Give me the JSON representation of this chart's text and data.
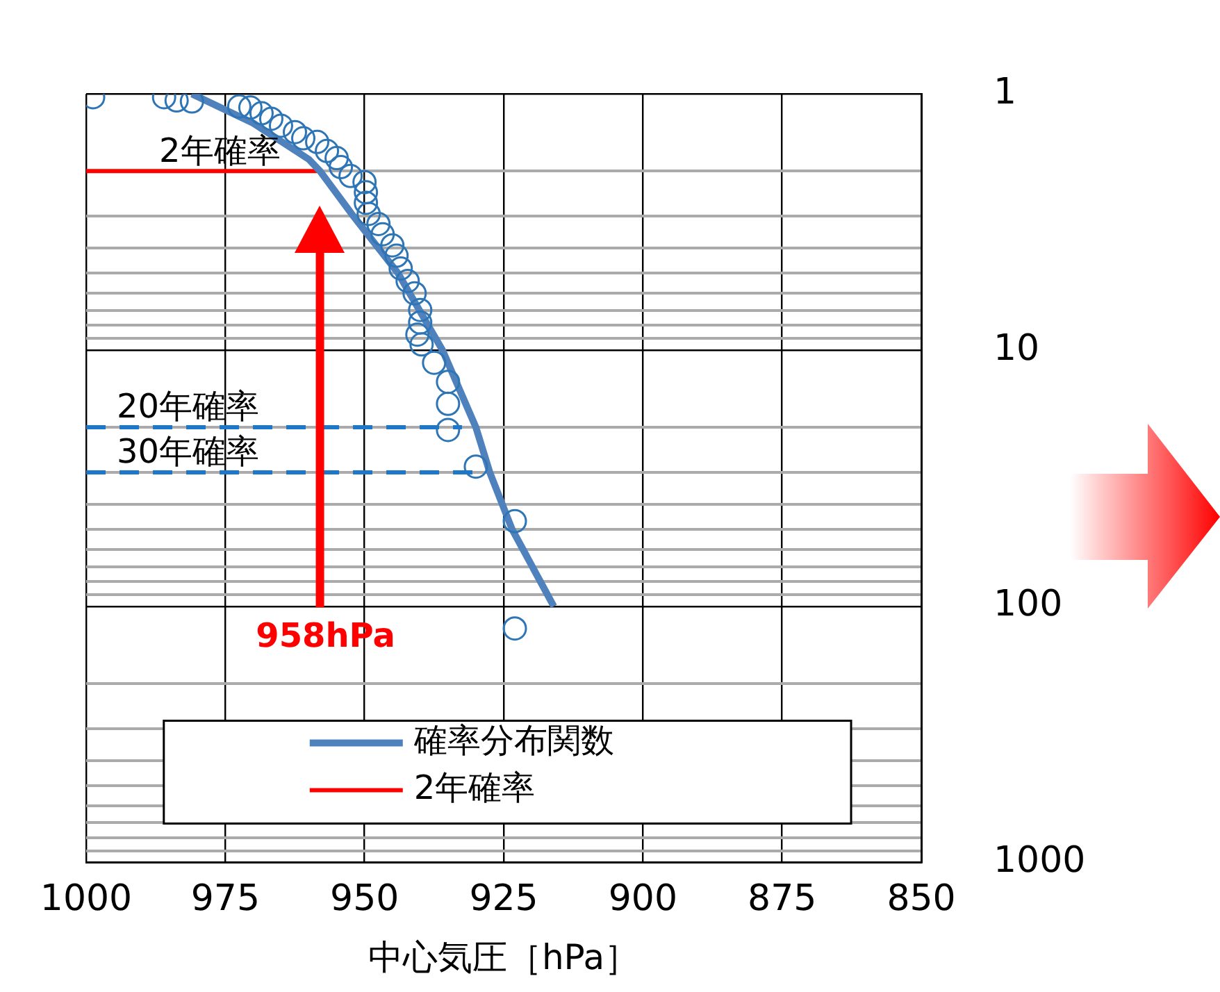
{
  "chart_data": {
    "type": "scatter",
    "xlabel": "中心気圧［hPa］",
    "xlim": [
      1000,
      850
    ],
    "xticks": [
      1000,
      975,
      950,
      925,
      900,
      875,
      850
    ],
    "ylim": [
      1000,
      1
    ],
    "yticks": [
      1,
      10,
      100,
      1000
    ],
    "log": "y",
    "grid": true,
    "legend": "bottom",
    "series": [
      {
        "type": "scatter",
        "color": "#2e75b6",
        "marker": "circle",
        "x": [
          998.75,
          986,
          983.75,
          981,
          972.5,
          970.5,
          968.5,
          966.75,
          965,
          962.5,
          961,
          958.5,
          956.75,
          955,
          954.25,
          952.5,
          950,
          949.75,
          949.75,
          949.25,
          947.5,
          946.75,
          945,
          944.25,
          943.5,
          942.25,
          941,
          940,
          940,
          940.5,
          939.75,
          937.5,
          935,
          935,
          935,
          930,
          923,
          923
        ],
        "values": [
          1.03,
          1.03,
          1.06,
          1.07,
          1.12,
          1.13,
          1.19,
          1.25,
          1.33,
          1.41,
          1.49,
          1.54,
          1.67,
          1.78,
          1.93,
          2.09,
          2.21,
          2.42,
          2.66,
          2.94,
          3.22,
          3.53,
          3.9,
          4.28,
          4.8,
          5.37,
          6,
          6.97,
          7.8,
          8.7,
          9.5,
          11.2,
          13.3,
          16.2,
          20.5,
          28.5,
          46.5,
          122
        ]
      },
      {
        "type": "line",
        "name": "確率分布関数",
        "color": "#4f81bd",
        "marker": "none",
        "x": [
          981,
          970,
          960,
          958,
          952,
          944,
          936,
          930,
          927.5,
          923.5,
          916
        ],
        "values": [
          1,
          1.3,
          1.8,
          2,
          3,
          5,
          10,
          20,
          30,
          50,
          100
        ]
      },
      {
        "type": "line",
        "name": "2年確率",
        "color": "#ff0000",
        "marker": "none",
        "x": [
          1000,
          958
        ],
        "values": [
          2,
          2
        ]
      }
    ],
    "ref_lines": [
      {
        "axis": "y",
        "value": 20,
        "label": "20年確率",
        "color": "#1f77c8",
        "line_style": "dashed"
      },
      {
        "axis": "y",
        "value": 30,
        "label": "30年確率",
        "color": "#1f77c8",
        "line_style": "dashed"
      },
      {
        "axis": "x",
        "value": 958,
        "label": "958hPa",
        "color": "#ff0000"
      }
    ],
    "annotations": [
      {
        "text": "2年確率",
        "x": 976,
        "y": 2
      }
    ]
  }
}
